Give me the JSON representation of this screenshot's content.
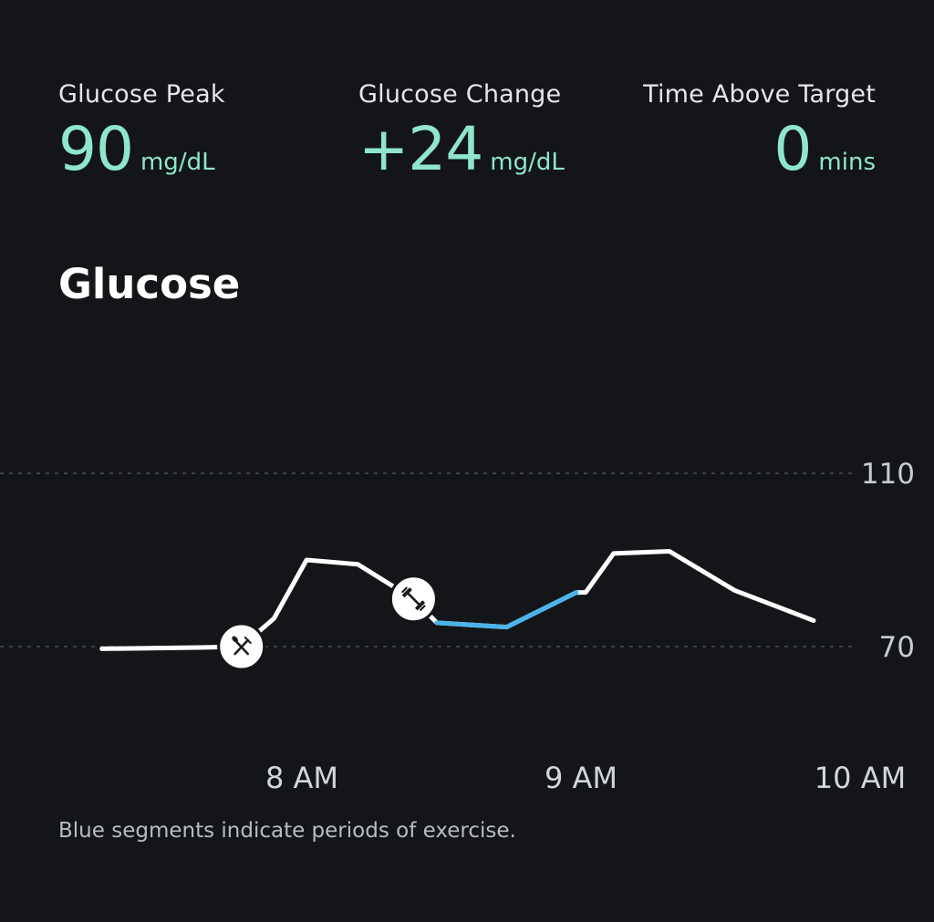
{
  "stats": {
    "peak": {
      "label": "Glucose Peak",
      "value": "90",
      "unit": "mg/dL"
    },
    "change": {
      "label": "Glucose Change",
      "value": "+24",
      "unit": "mg/dL"
    },
    "time_above": {
      "label": "Time Above Target",
      "value": "0",
      "unit": "mins"
    }
  },
  "section_title": "Glucose",
  "footnote": "Blue segments indicate periods of exercise.",
  "colors": {
    "accent": "#8fe6cc",
    "exercise": "#4cb4e8",
    "line": "#ffffff",
    "background": "#131519"
  },
  "chart_data": {
    "type": "line",
    "title": "",
    "xlabel": "",
    "ylabel": "",
    "x_ticks": [
      "8 AM",
      "9 AM",
      "10 AM"
    ],
    "y_ticks": [
      70,
      110
    ],
    "ylim": [
      70,
      110
    ],
    "grid": "dashed horizontal lines at y ticks",
    "series": [
      {
        "points": [
          {
            "time": "7:17 AM",
            "value": 69.5
          },
          {
            "time": "7:38 AM",
            "value": 69.8
          },
          {
            "time": "7:47 AM",
            "value": 70.0
          },
          {
            "time": "7:54 AM",
            "value": 76.5
          },
          {
            "time": "8:01 AM",
            "value": 90.0
          },
          {
            "time": "8:12 AM",
            "value": 89.0
          },
          {
            "time": "8:24 AM",
            "value": 81.0
          },
          {
            "time": "8:29 AM",
            "value": 75.5
          },
          {
            "time": "8:44 AM",
            "value": 74.5
          },
          {
            "time": "8:59 AM",
            "value": 82.5
          },
          {
            "time": "9:01 AM",
            "value": 82.5
          },
          {
            "time": "9:07 AM",
            "value": 91.5
          },
          {
            "time": "9:19 AM",
            "value": 92.0
          },
          {
            "time": "9:33 AM",
            "value": 83.0
          },
          {
            "time": "9:50 AM",
            "value": 76.0
          }
        ]
      }
    ],
    "exercise_segment": {
      "start": "8:29 AM",
      "end": "8:59 AM"
    },
    "markers": [
      {
        "type": "meal",
        "icon": "fork-knife-icon",
        "time": "7:47 AM",
        "value": 70.0
      },
      {
        "type": "exercise",
        "icon": "dumbbell-icon",
        "time": "8:24 AM",
        "value": 81.0
      }
    ]
  }
}
